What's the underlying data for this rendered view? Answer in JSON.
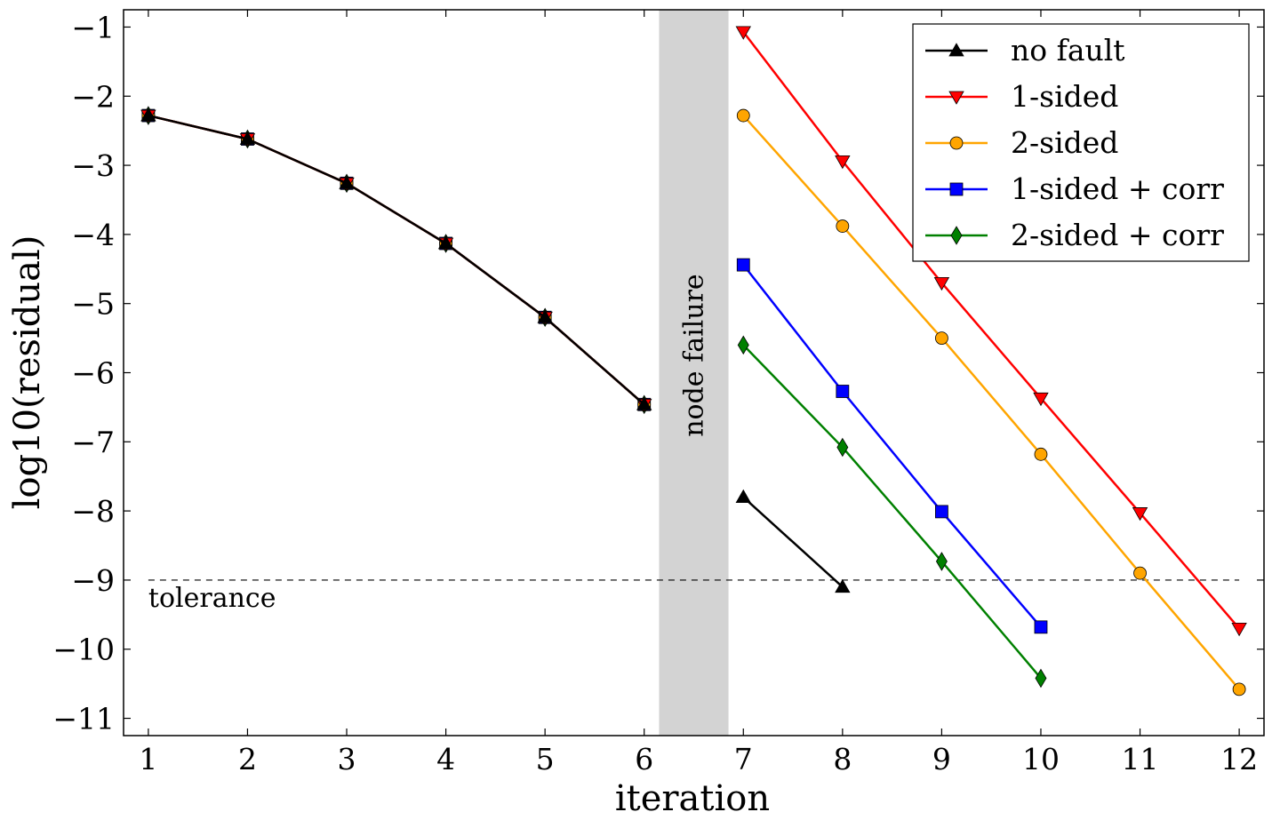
{
  "chart_data": {
    "type": "line",
    "xlabel": "iteration",
    "ylabel": "log10(residual)",
    "xlim": [
      0.75,
      12.25
    ],
    "ylim": [
      -11.25,
      -0.75
    ],
    "x_ticks": [
      1,
      2,
      3,
      4,
      5,
      6,
      7,
      8,
      9,
      10,
      11,
      12
    ],
    "y_ticks": [
      -1,
      -2,
      -3,
      -4,
      -5,
      -6,
      -7,
      -8,
      -9,
      -10,
      -11
    ],
    "x_tick_labels": [
      "1",
      "2",
      "3",
      "4",
      "5",
      "6",
      "7",
      "8",
      "9",
      "10",
      "11",
      "12"
    ],
    "y_tick_labels": [
      "−1",
      "−2",
      "−3",
      "−4",
      "−5",
      "−6",
      "−7",
      "−8",
      "−9",
      "−10",
      "−11"
    ],
    "grid": false,
    "legend_position": "top-right",
    "failure_band": {
      "x_start": 6.15,
      "x_end": 6.85,
      "label": "node failure",
      "color": "#d3d3d3"
    },
    "tolerance": {
      "y": -9,
      "label": "tolerance"
    },
    "series": [
      {
        "name": "no fault",
        "color": "#000000",
        "marker": "triangle-up",
        "x": [
          1,
          2,
          3,
          4,
          5,
          6,
          7,
          8
        ],
        "y": [
          -2.28,
          -2.62,
          -3.26,
          -4.13,
          -5.2,
          -6.46,
          -7.8,
          -9.1
        ]
      },
      {
        "name": "1-sided",
        "color": "#ff0000",
        "marker": "triangle-down",
        "x": [
          1,
          2,
          3,
          4,
          5,
          6,
          7,
          8,
          9,
          10,
          11,
          12
        ],
        "y": [
          -2.28,
          -2.62,
          -3.26,
          -4.13,
          -5.2,
          -6.46,
          -1.07,
          -2.94,
          -4.7,
          -6.37,
          -8.03,
          -9.7
        ]
      },
      {
        "name": "2-sided",
        "color": "#ffa500",
        "marker": "circle",
        "x": [
          1,
          2,
          3,
          4,
          5,
          6,
          7,
          8,
          9,
          10,
          11,
          12
        ],
        "y": [
          -2.28,
          -2.62,
          -3.26,
          -4.13,
          -5.2,
          -6.46,
          -2.28,
          -3.88,
          -5.5,
          -7.18,
          -8.9,
          -10.58
        ]
      },
      {
        "name": "1-sided + corr",
        "color": "#0000ff",
        "marker": "square",
        "x": [
          1,
          2,
          3,
          4,
          5,
          6,
          7,
          8,
          9,
          10
        ],
        "y": [
          -2.28,
          -2.62,
          -3.26,
          -4.13,
          -5.2,
          -6.46,
          -4.44,
          -6.27,
          -8.01,
          -9.68
        ]
      },
      {
        "name": "2-sided + corr",
        "color": "#008000",
        "marker": "diamond",
        "x": [
          1,
          2,
          3,
          4,
          5,
          6,
          7,
          8,
          9,
          10
        ],
        "y": [
          -2.28,
          -2.62,
          -3.26,
          -4.13,
          -5.2,
          -6.46,
          -5.6,
          -7.08,
          -8.73,
          -10.42
        ]
      }
    ]
  }
}
